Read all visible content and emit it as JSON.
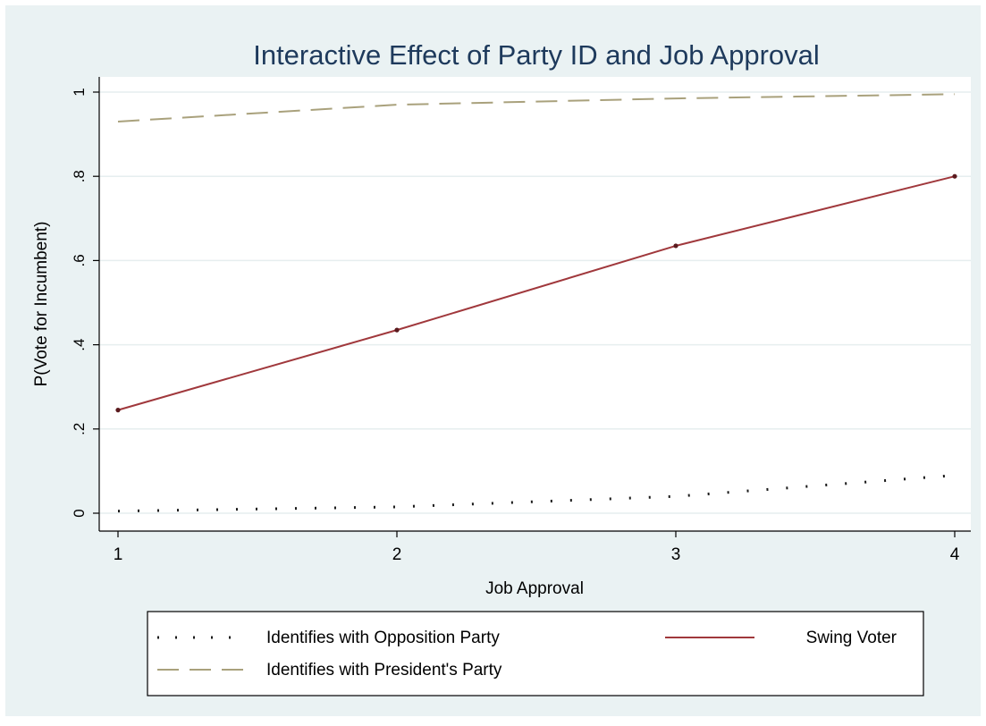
{
  "chart_data": {
    "type": "line",
    "title": "Interactive Effect of Party ID and Job Approval",
    "xlabel": "Job Approval",
    "ylabel": "P(Vote for Incumbent)",
    "x": [
      1,
      2,
      3,
      4
    ],
    "xticks": [
      "1",
      "2",
      "3",
      "4"
    ],
    "yticks": [
      "0",
      ".2",
      ".4",
      ".6",
      ".8",
      "1"
    ],
    "xlim": [
      1,
      4
    ],
    "ylim": [
      0,
      1
    ],
    "grid": true,
    "legend_position": "bottom",
    "series": [
      {
        "name": "Identifies with Opposition Party",
        "style": "dotted",
        "color": "#1a1a1a",
        "values": [
          0.005,
          0.015,
          0.04,
          0.09
        ]
      },
      {
        "name": "Swing Voter",
        "style": "solid",
        "color": "#a0383c",
        "values": [
          0.245,
          0.435,
          0.635,
          0.8
        ]
      },
      {
        "name": "Identifies with President's Party",
        "style": "dashed",
        "color": "#a9a17c",
        "values": [
          0.93,
          0.97,
          0.985,
          0.995
        ]
      }
    ]
  }
}
